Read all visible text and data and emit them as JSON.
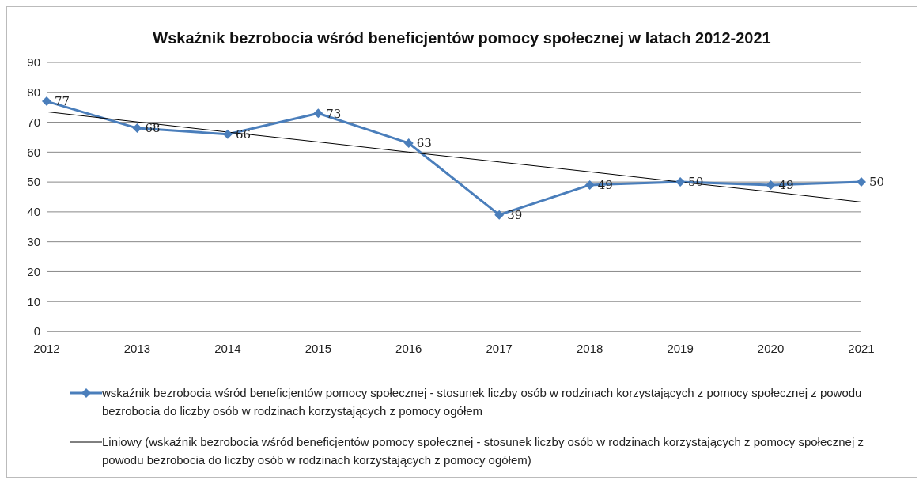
{
  "chart_data": {
    "type": "line",
    "title": "Wskaźnik bezrobocia wśród beneficjentów pomocy społecznej w latach 2012-2021",
    "categories": [
      "2012",
      "2013",
      "2014",
      "2015",
      "2016",
      "2017",
      "2018",
      "2019",
      "2020",
      "2021"
    ],
    "series": [
      {
        "name": "wskaźnik bezrobocia wśród beneficjentów pomocy społecznej - stosunek liczby osób w rodzinach korzystających z pomocy społecznej z powodu bezrobocia do liczby osób w rodzinach korzystających z pomocy ogółem",
        "color": "#4a7ebb",
        "values": [
          77,
          68,
          66,
          73,
          63,
          39,
          49,
          50,
          49,
          50
        ],
        "marker": "diamond",
        "data_labels": true
      },
      {
        "type": "line",
        "name": "Liniowy (wskaźnik bezrobocia wśród beneficjentów pomocy społecznej - stosunek liczby osób w rodzinach korzystających z pomocy społecznej z powodu bezrobocia do liczby osób w rodzinach korzystających z pomocy ogółem)",
        "color": "#000000",
        "values": [
          73.5,
          70.1,
          66.7,
          63.4,
          60.0,
          56.7,
          53.4,
          50.0,
          46.7,
          43.3
        ],
        "marker": "none"
      }
    ],
    "ylim": [
      0,
      90
    ],
    "yticks": [
      0,
      10,
      20,
      30,
      40,
      50,
      60,
      70,
      80,
      90
    ],
    "grid": "y",
    "legend": "bottom"
  }
}
